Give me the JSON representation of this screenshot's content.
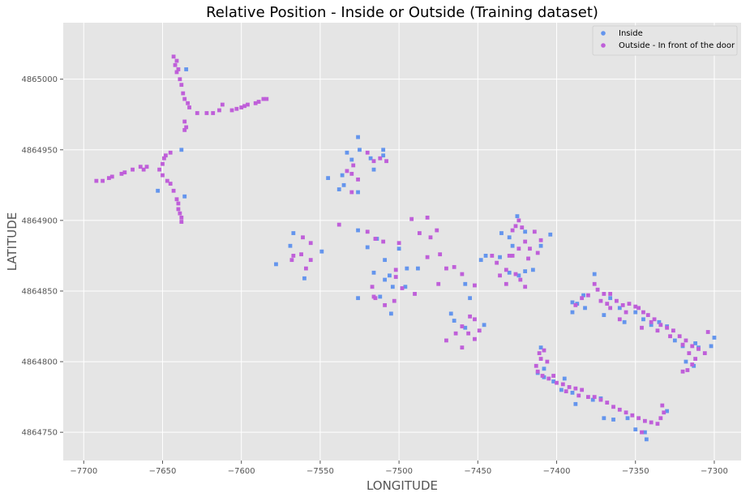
{
  "chart_data": {
    "type": "scatter",
    "title": "Relative Position - Inside or Outside (Training dataset)",
    "xlabel": "LONGITUDE",
    "ylabel": "LATITUDE",
    "xlim": [
      -7713,
      -7283
    ],
    "ylim": [
      4864730,
      4865040
    ],
    "xticks": [
      -7700,
      -7650,
      -7600,
      -7550,
      -7500,
      -7450,
      -7400,
      -7350,
      -7300
    ],
    "yticks": [
      4864750,
      4864800,
      4864850,
      4864900,
      4864950,
      4865000
    ],
    "grid": true,
    "legend_position": "top-right",
    "background": "#e5e5e5",
    "series": [
      {
        "name": "Inside",
        "color": "#6495ed",
        "points": [
          [
            -7635,
            4865007
          ],
          [
            -7653,
            4864921
          ],
          [
            -7636,
            4864917
          ],
          [
            -7638,
            4864950
          ],
          [
            -7530,
            4864943
          ],
          [
            -7526,
            4864959
          ],
          [
            -7533,
            4864948
          ],
          [
            -7536,
            4864932
          ],
          [
            -7545,
            4864930
          ],
          [
            -7535,
            4864925
          ],
          [
            -7538,
            4864922
          ],
          [
            -7526,
            4864920
          ],
          [
            -7510,
            4864950
          ],
          [
            -7510,
            4864946
          ],
          [
            -7516,
            4864936
          ],
          [
            -7518,
            4864944
          ],
          [
            -7525,
            4864950
          ],
          [
            -7567,
            4864891
          ],
          [
            -7569,
            4864882
          ],
          [
            -7560,
            4864859
          ],
          [
            -7578,
            4864869
          ],
          [
            -7549,
            4864878
          ],
          [
            -7526,
            4864893
          ],
          [
            -7520,
            4864881
          ],
          [
            -7514,
            4864887
          ],
          [
            -7516,
            4864863
          ],
          [
            -7509,
            4864872
          ],
          [
            -7500,
            4864880
          ],
          [
            -7506,
            4864861
          ],
          [
            -7504,
            4864853
          ],
          [
            -7509,
            4864858
          ],
          [
            -7496,
            4864853
          ],
          [
            -7505,
            4864834
          ],
          [
            -7526,
            4864845
          ],
          [
            -7512,
            4864846
          ],
          [
            -7495,
            4864866
          ],
          [
            -7488,
            4864866
          ],
          [
            -7458,
            4864855
          ],
          [
            -7455,
            4864845
          ],
          [
            -7467,
            4864834
          ],
          [
            -7465,
            4864829
          ],
          [
            -7458,
            4864824
          ],
          [
            -7446,
            4864826
          ],
          [
            -7448,
            4864872
          ],
          [
            -7445,
            4864875
          ],
          [
            -7436,
            4864874
          ],
          [
            -7430,
            4864863
          ],
          [
            -7428,
            4864882
          ],
          [
            -7435,
            4864891
          ],
          [
            -7430,
            4864888
          ],
          [
            -7425,
            4864903
          ],
          [
            -7420,
            4864892
          ],
          [
            -7424,
            4864861
          ],
          [
            -7415,
            4864865
          ],
          [
            -7410,
            4864882
          ],
          [
            -7404,
            4864890
          ],
          [
            -7420,
            4864864
          ],
          [
            -7376,
            4864862
          ],
          [
            -7383,
            4864847
          ],
          [
            -7387,
            4864841
          ],
          [
            -7390,
            4864842
          ],
          [
            -7382,
            4864838
          ],
          [
            -7390,
            4864835
          ],
          [
            -7370,
            4864833
          ],
          [
            -7366,
            4864845
          ],
          [
            -7360,
            4864838
          ],
          [
            -7357,
            4864828
          ],
          [
            -7345,
            4864830
          ],
          [
            -7350,
            4864835
          ],
          [
            -7340,
            4864826
          ],
          [
            -7335,
            4864828
          ],
          [
            -7330,
            4864825
          ],
          [
            -7325,
            4864815
          ],
          [
            -7312,
            4864813
          ],
          [
            -7320,
            4864811
          ],
          [
            -7300,
            4864817
          ],
          [
            -7302,
            4864811
          ],
          [
            -7318,
            4864800
          ],
          [
            -7313,
            4864797
          ],
          [
            -7310,
            4864810
          ],
          [
            -7410,
            4864810
          ],
          [
            -7408,
            4864795
          ],
          [
            -7412,
            4864792
          ],
          [
            -7408,
            4864789
          ],
          [
            -7402,
            4864786
          ],
          [
            -7397,
            4864780
          ],
          [
            -7395,
            4864788
          ],
          [
            -7390,
            4864778
          ],
          [
            -7388,
            4864770
          ],
          [
            -7377,
            4864773
          ],
          [
            -7372,
            4864774
          ],
          [
            -7370,
            4864760
          ],
          [
            -7364,
            4864759
          ],
          [
            -7355,
            4864760
          ],
          [
            -7350,
            4864752
          ],
          [
            -7344,
            4864750
          ],
          [
            -7343,
            4864745
          ],
          [
            -7330,
            4864765
          ]
        ]
      },
      {
        "name": "Outside - In front of the door",
        "color": "#bf5fd9",
        "points": [
          [
            -7643,
            4865016
          ],
          [
            -7641,
            4865013
          ],
          [
            -7642,
            4865010
          ],
          [
            -7640,
            4865007
          ],
          [
            -7641,
            4865005
          ],
          [
            -7639,
            4865000
          ],
          [
            -7638,
            4864996
          ],
          [
            -7637,
            4864990
          ],
          [
            -7636,
            4864986
          ],
          [
            -7634,
            4864983
          ],
          [
            -7633,
            4864980
          ],
          [
            -7636,
            4864970
          ],
          [
            -7635,
            4864966
          ],
          [
            -7636,
            4864964
          ],
          [
            -7628,
            4864976
          ],
          [
            -7622,
            4864976
          ],
          [
            -7618,
            4864976
          ],
          [
            -7614,
            4864978
          ],
          [
            -7612,
            4864982
          ],
          [
            -7606,
            4864978
          ],
          [
            -7603,
            4864979
          ],
          [
            -7600,
            4864980
          ],
          [
            -7598,
            4864981
          ],
          [
            -7596,
            4864982
          ],
          [
            -7591,
            4864983
          ],
          [
            -7589,
            4864984
          ],
          [
            -7586,
            4864986
          ],
          [
            -7584,
            4864986
          ],
          [
            -7648,
            4864946
          ],
          [
            -7649,
            4864944
          ],
          [
            -7650,
            4864940
          ],
          [
            -7652,
            4864936
          ],
          [
            -7650,
            4864932
          ],
          [
            -7647,
            4864928
          ],
          [
            -7645,
            4864926
          ],
          [
            -7643,
            4864921
          ],
          [
            -7641,
            4864915
          ],
          [
            -7640,
            4864912
          ],
          [
            -7640,
            4864908
          ],
          [
            -7639,
            4864905
          ],
          [
            -7638,
            4864902
          ],
          [
            -7638,
            4864899
          ],
          [
            -7664,
            4864938
          ],
          [
            -7662,
            4864936
          ],
          [
            -7669,
            4864936
          ],
          [
            -7674,
            4864934
          ],
          [
            -7676,
            4864933
          ],
          [
            -7682,
            4864931
          ],
          [
            -7684,
            4864930
          ],
          [
            -7688,
            4864928
          ],
          [
            -7692,
            4864928
          ],
          [
            -7645,
            4864948
          ],
          [
            -7660,
            4864938
          ],
          [
            -7538,
            4864897
          ],
          [
            -7530,
            4864920
          ],
          [
            -7533,
            4864935
          ],
          [
            -7530,
            4864933
          ],
          [
            -7526,
            4864929
          ],
          [
            -7529,
            4864939
          ],
          [
            -7520,
            4864948
          ],
          [
            -7516,
            4864942
          ],
          [
            -7512,
            4864944
          ],
          [
            -7508,
            4864942
          ],
          [
            -7561,
            4864888
          ],
          [
            -7556,
            4864884
          ],
          [
            -7562,
            4864876
          ],
          [
            -7556,
            4864872
          ],
          [
            -7559,
            4864866
          ],
          [
            -7567,
            4864875
          ],
          [
            -7568,
            4864872
          ],
          [
            -7520,
            4864892
          ],
          [
            -7515,
            4864887
          ],
          [
            -7510,
            4864885
          ],
          [
            -7500,
            4864884
          ],
          [
            -7492,
            4864901
          ],
          [
            -7482,
            4864902
          ],
          [
            -7476,
            4864893
          ],
          [
            -7487,
            4864891
          ],
          [
            -7480,
            4864888
          ],
          [
            -7474,
            4864876
          ],
          [
            -7482,
            4864874
          ],
          [
            -7470,
            4864866
          ],
          [
            -7465,
            4864867
          ],
          [
            -7460,
            4864862
          ],
          [
            -7502,
            4864865
          ],
          [
            -7502,
            4864860
          ],
          [
            -7498,
            4864852
          ],
          [
            -7517,
            4864853
          ],
          [
            -7516,
            4864846
          ],
          [
            -7503,
            4864843
          ],
          [
            -7509,
            4864840
          ],
          [
            -7515,
            4864845
          ],
          [
            -7490,
            4864848
          ],
          [
            -7475,
            4864855
          ],
          [
            -7452,
            4864854
          ],
          [
            -7470,
            4864815
          ],
          [
            -7464,
            4864820
          ],
          [
            -7460,
            4864825
          ],
          [
            -7456,
            4864820
          ],
          [
            -7455,
            4864832
          ],
          [
            -7452,
            4864830
          ],
          [
            -7449,
            4864822
          ],
          [
            -7460,
            4864810
          ],
          [
            -7452,
            4864816
          ],
          [
            -7441,
            4864875
          ],
          [
            -7438,
            4864870
          ],
          [
            -7432,
            4864865
          ],
          [
            -7436,
            4864861
          ],
          [
            -7430,
            4864875
          ],
          [
            -7428,
            4864893
          ],
          [
            -7426,
            4864896
          ],
          [
            -7424,
            4864900
          ],
          [
            -7422,
            4864895
          ],
          [
            -7424,
            4864880
          ],
          [
            -7420,
            4864885
          ],
          [
            -7417,
            4864880
          ],
          [
            -7414,
            4864892
          ],
          [
            -7410,
            4864886
          ],
          [
            -7412,
            4864877
          ],
          [
            -7423,
            4864858
          ],
          [
            -7420,
            4864853
          ],
          [
            -7428,
            4864875
          ],
          [
            -7432,
            4864855
          ],
          [
            -7426,
            4864862
          ],
          [
            -7418,
            4864873
          ],
          [
            -7376,
            4864855
          ],
          [
            -7374,
            4864851
          ],
          [
            -7370,
            4864848
          ],
          [
            -7366,
            4864848
          ],
          [
            -7362,
            4864843
          ],
          [
            -7358,
            4864840
          ],
          [
            -7354,
            4864841
          ],
          [
            -7350,
            4864839
          ],
          [
            -7348,
            4864838
          ],
          [
            -7345,
            4864835
          ],
          [
            -7342,
            4864833
          ],
          [
            -7338,
            4864830
          ],
          [
            -7334,
            4864826
          ],
          [
            -7330,
            4864824
          ],
          [
            -7326,
            4864822
          ],
          [
            -7322,
            4864818
          ],
          [
            -7318,
            4864815
          ],
          [
            -7314,
            4864811
          ],
          [
            -7310,
            4864809
          ],
          [
            -7306,
            4864806
          ],
          [
            -7304,
            4864821
          ],
          [
            -7380,
            4864847
          ],
          [
            -7384,
            4864845
          ],
          [
            -7388,
            4864840
          ],
          [
            -7372,
            4864843
          ],
          [
            -7368,
            4864841
          ],
          [
            -7356,
            4864835
          ],
          [
            -7336,
            4864822
          ],
          [
            -7328,
            4864818
          ],
          [
            -7320,
            4864812
          ],
          [
            -7316,
            4864806
          ],
          [
            -7312,
            4864802
          ],
          [
            -7314,
            4864798
          ],
          [
            -7317,
            4864794
          ],
          [
            -7320,
            4864793
          ],
          [
            -7340,
            4864828
          ],
          [
            -7346,
            4864824
          ],
          [
            -7360,
            4864830
          ],
          [
            -7366,
            4864838
          ],
          [
            -7408,
            4864808
          ],
          [
            -7411,
            4864806
          ],
          [
            -7410,
            4864802
          ],
          [
            -7413,
            4864797
          ],
          [
            -7412,
            4864793
          ],
          [
            -7409,
            4864790
          ],
          [
            -7405,
            4864788
          ],
          [
            -7400,
            4864785
          ],
          [
            -7396,
            4864784
          ],
          [
            -7392,
            4864782
          ],
          [
            -7388,
            4864781
          ],
          [
            -7384,
            4864780
          ],
          [
            -7380,
            4864775
          ],
          [
            -7376,
            4864775
          ],
          [
            -7372,
            4864773
          ],
          [
            -7368,
            4864771
          ],
          [
            -7364,
            4864768
          ],
          [
            -7360,
            4864766
          ],
          [
            -7356,
            4864764
          ],
          [
            -7352,
            4864762
          ],
          [
            -7348,
            4864760
          ],
          [
            -7344,
            4864758
          ],
          [
            -7340,
            4864757
          ],
          [
            -7336,
            4864756
          ],
          [
            -7334,
            4864760
          ],
          [
            -7332,
            4864764
          ],
          [
            -7333,
            4864769
          ],
          [
            -7346,
            4864750
          ],
          [
            -7386,
            4864776
          ],
          [
            -7394,
            4864779
          ],
          [
            -7402,
            4864790
          ],
          [
            -7406,
            4864800
          ]
        ]
      }
    ]
  }
}
